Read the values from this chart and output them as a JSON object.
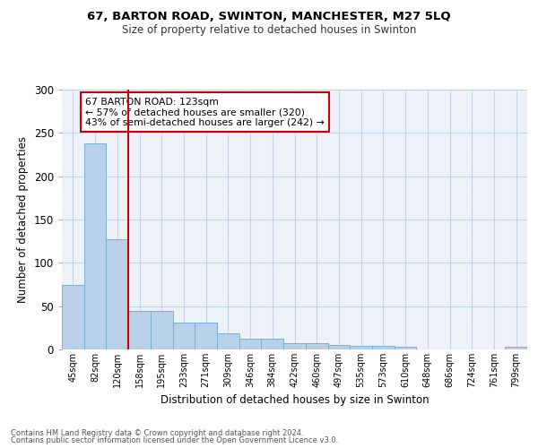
{
  "title1": "67, BARTON ROAD, SWINTON, MANCHESTER, M27 5LQ",
  "title2": "Size of property relative to detached houses in Swinton",
  "xlabel": "Distribution of detached houses by size in Swinton",
  "ylabel": "Number of detached properties",
  "bins": [
    "45sqm",
    "82sqm",
    "120sqm",
    "158sqm",
    "195sqm",
    "233sqm",
    "271sqm",
    "309sqm",
    "346sqm",
    "384sqm",
    "422sqm",
    "460sqm",
    "497sqm",
    "535sqm",
    "573sqm",
    "610sqm",
    "648sqm",
    "686sqm",
    "724sqm",
    "761sqm",
    "799sqm"
  ],
  "values": [
    74,
    238,
    127,
    44,
    44,
    31,
    31,
    19,
    12,
    12,
    7,
    7,
    5,
    4,
    4,
    3,
    0,
    0,
    0,
    0,
    3
  ],
  "bar_color": "#b8d0e8",
  "bar_edge_color": "#7aafd4",
  "vline_color": "#cc0000",
  "vline_pos": 2.5,
  "annotation_text": "67 BARTON ROAD: 123sqm\n← 57% of detached houses are smaller (320)\n43% of semi-detached houses are larger (242) →",
  "annotation_box_facecolor": "#ffffff",
  "annotation_box_edgecolor": "#cc0000",
  "ylim": [
    0,
    300
  ],
  "yticks": [
    0,
    50,
    100,
    150,
    200,
    250,
    300
  ],
  "footer1": "Contains HM Land Registry data © Crown copyright and database right 2024.",
  "footer2": "Contains public sector information licensed under the Open Government Licence v3.0.",
  "bg_color": "#edf2f9",
  "grid_color": "#c5d5e8"
}
